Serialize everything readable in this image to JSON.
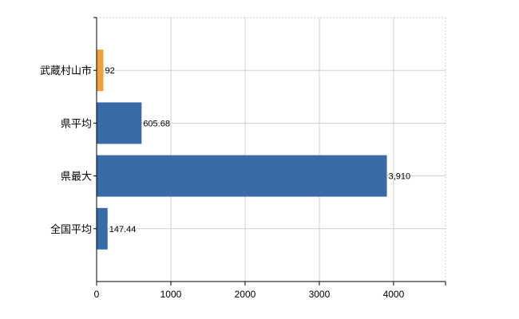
{
  "chart_data": {
    "type": "bar",
    "orientation": "horizontal",
    "categories": [
      "武蔵村山市",
      "県平均",
      "県最大",
      "全国平均"
    ],
    "values": [
      92,
      605.68,
      3910,
      147.44
    ],
    "value_labels": [
      "92",
      "605.68",
      "3,910",
      "147.44"
    ],
    "bar_colors": [
      "#f0a040",
      "#3b6aa8",
      "#3b6aa8",
      "#3b6aa8"
    ],
    "x_ticks": [
      0,
      1000,
      2000,
      3000,
      4000
    ],
    "xlim": [
      0,
      4700
    ],
    "grid": true,
    "legend": "none"
  }
}
